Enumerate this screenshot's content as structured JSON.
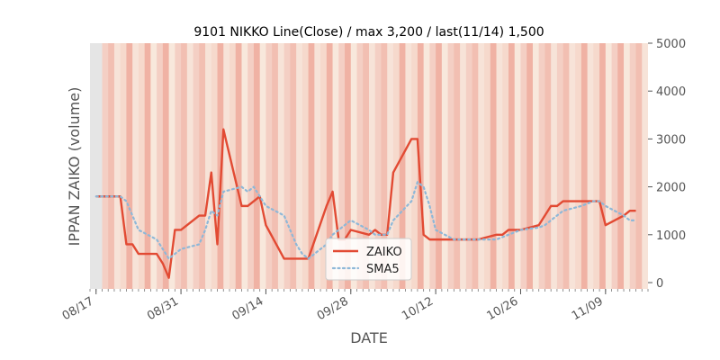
{
  "chart_data": {
    "type": "line",
    "title": "9101 NIKKO Line(Close) / max 3,200 / last(11/14) 1,500",
    "xlabel": "DATE",
    "ylabel": "IPPAN ZAIKO (volume)",
    "ylim": [
      0,
      5000
    ],
    "xlim": [
      "2018-08-16",
      "2018-11-16"
    ],
    "y_ticks": [
      0,
      1000,
      2000,
      3000,
      4000,
      5000
    ],
    "y_tick_labels": [
      "0",
      "1000",
      "2000",
      "3000",
      "4000",
      "5000"
    ],
    "x_ticks": [
      "2018-08-17",
      "2018-08-31",
      "2018-09-14",
      "2018-09-28",
      "2018-10-12",
      "2018-10-26",
      "2018-11-09"
    ],
    "x_tick_labels": [
      "08/17",
      "08/31",
      "09/14",
      "09/28",
      "10/12",
      "10/26",
      "11/09"
    ],
    "y_axis_position": "right",
    "grid": false,
    "legend_position": "bottom-center",
    "background_bands": "per-day shading in pink/red/beige tones",
    "series": [
      {
        "name": "ZAIKO",
        "color": "#e24a33",
        "style": "solid",
        "points": [
          [
            "2018-08-17",
            1800
          ],
          [
            "2018-08-20",
            1800
          ],
          [
            "2018-08-21",
            1800
          ],
          [
            "2018-08-22",
            800
          ],
          [
            "2018-08-23",
            800
          ],
          [
            "2018-08-24",
            600
          ],
          [
            "2018-08-27",
            600
          ],
          [
            "2018-08-28",
            400
          ],
          [
            "2018-08-29",
            100
          ],
          [
            "2018-08-30",
            1100
          ],
          [
            "2018-08-31",
            1100
          ],
          [
            "2018-09-03",
            1400
          ],
          [
            "2018-09-04",
            1400
          ],
          [
            "2018-09-05",
            2300
          ],
          [
            "2018-09-06",
            800
          ],
          [
            "2018-09-07",
            3200
          ],
          [
            "2018-09-10",
            1600
          ],
          [
            "2018-09-11",
            1600
          ],
          [
            "2018-09-12",
            1700
          ],
          [
            "2018-09-13",
            1800
          ],
          [
            "2018-09-14",
            1200
          ],
          [
            "2018-09-17",
            500
          ],
          [
            "2018-09-18",
            500
          ],
          [
            "2018-09-19",
            500
          ],
          [
            "2018-09-20",
            500
          ],
          [
            "2018-09-21",
            500
          ],
          [
            "2018-09-24",
            1600
          ],
          [
            "2018-09-25",
            1900
          ],
          [
            "2018-09-26",
            900
          ],
          [
            "2018-09-27",
            900
          ],
          [
            "2018-09-28",
            1100
          ],
          [
            "2018-10-01",
            1000
          ],
          [
            "2018-10-02",
            1100
          ],
          [
            "2018-10-03",
            1000
          ],
          [
            "2018-10-04",
            1000
          ],
          [
            "2018-10-05",
            2300
          ],
          [
            "2018-10-08",
            3000
          ],
          [
            "2018-10-09",
            3000
          ],
          [
            "2018-10-10",
            1000
          ],
          [
            "2018-10-11",
            900
          ],
          [
            "2018-10-12",
            900
          ],
          [
            "2018-10-15",
            900
          ],
          [
            "2018-10-16",
            900
          ],
          [
            "2018-10-17",
            900
          ],
          [
            "2018-10-18",
            900
          ],
          [
            "2018-10-19",
            900
          ],
          [
            "2018-10-22",
            1000
          ],
          [
            "2018-10-23",
            1000
          ],
          [
            "2018-10-24",
            1100
          ],
          [
            "2018-10-25",
            1100
          ],
          [
            "2018-10-26",
            1100
          ],
          [
            "2018-10-29",
            1200
          ],
          [
            "2018-10-30",
            1400
          ],
          [
            "2018-10-31",
            1600
          ],
          [
            "2018-11-01",
            1600
          ],
          [
            "2018-11-02",
            1700
          ],
          [
            "2018-11-05",
            1700
          ],
          [
            "2018-11-06",
            1700
          ],
          [
            "2018-11-07",
            1700
          ],
          [
            "2018-11-08",
            1700
          ],
          [
            "2018-11-09",
            1200
          ],
          [
            "2018-11-12",
            1400
          ],
          [
            "2018-11-13",
            1500
          ],
          [
            "2018-11-14",
            1500
          ]
        ]
      },
      {
        "name": "SMA5",
        "color": "#8eb8d8",
        "style": "dotted",
        "points": [
          [
            "2018-08-17",
            1800
          ],
          [
            "2018-08-20",
            1800
          ],
          [
            "2018-08-21",
            1800
          ],
          [
            "2018-08-22",
            1700
          ],
          [
            "2018-08-23",
            1400
          ],
          [
            "2018-08-24",
            1100
          ],
          [
            "2018-08-27",
            900
          ],
          [
            "2018-08-28",
            700
          ],
          [
            "2018-08-29",
            500
          ],
          [
            "2018-08-30",
            600
          ],
          [
            "2018-08-31",
            700
          ],
          [
            "2018-09-03",
            800
          ],
          [
            "2018-09-04",
            1100
          ],
          [
            "2018-09-05",
            1500
          ],
          [
            "2018-09-06",
            1400
          ],
          [
            "2018-09-07",
            1900
          ],
          [
            "2018-09-10",
            2000
          ],
          [
            "2018-09-11",
            1900
          ],
          [
            "2018-09-12",
            2000
          ],
          [
            "2018-09-13",
            1800
          ],
          [
            "2018-09-14",
            1600
          ],
          [
            "2018-09-17",
            1400
          ],
          [
            "2018-09-18",
            1100
          ],
          [
            "2018-09-19",
            800
          ],
          [
            "2018-09-20",
            600
          ],
          [
            "2018-09-21",
            500
          ],
          [
            "2018-09-24",
            800
          ],
          [
            "2018-09-25",
            1000
          ],
          [
            "2018-09-26",
            1100
          ],
          [
            "2018-09-27",
            1200
          ],
          [
            "2018-09-28",
            1300
          ],
          [
            "2018-10-01",
            1100
          ],
          [
            "2018-10-02",
            1000
          ],
          [
            "2018-10-03",
            1000
          ],
          [
            "2018-10-04",
            1000
          ],
          [
            "2018-10-05",
            1300
          ],
          [
            "2018-10-08",
            1700
          ],
          [
            "2018-10-09",
            2100
          ],
          [
            "2018-10-10",
            2000
          ],
          [
            "2018-10-11",
            1600
          ],
          [
            "2018-10-12",
            1100
          ],
          [
            "2018-10-15",
            900
          ],
          [
            "2018-10-16",
            900
          ],
          [
            "2018-10-17",
            900
          ],
          [
            "2018-10-18",
            900
          ],
          [
            "2018-10-19",
            900
          ],
          [
            "2018-10-22",
            900
          ],
          [
            "2018-10-23",
            950
          ],
          [
            "2018-10-24",
            1000
          ],
          [
            "2018-10-25",
            1050
          ],
          [
            "2018-10-26",
            1100
          ],
          [
            "2018-10-29",
            1150
          ],
          [
            "2018-10-30",
            1200
          ],
          [
            "2018-10-31",
            1300
          ],
          [
            "2018-11-01",
            1400
          ],
          [
            "2018-11-02",
            1500
          ],
          [
            "2018-11-05",
            1600
          ],
          [
            "2018-11-06",
            1650
          ],
          [
            "2018-11-07",
            1700
          ],
          [
            "2018-11-08",
            1700
          ],
          [
            "2018-11-09",
            1600
          ],
          [
            "2018-11-12",
            1400
          ],
          [
            "2018-11-13",
            1300
          ],
          [
            "2018-11-14",
            1300
          ]
        ]
      }
    ]
  }
}
